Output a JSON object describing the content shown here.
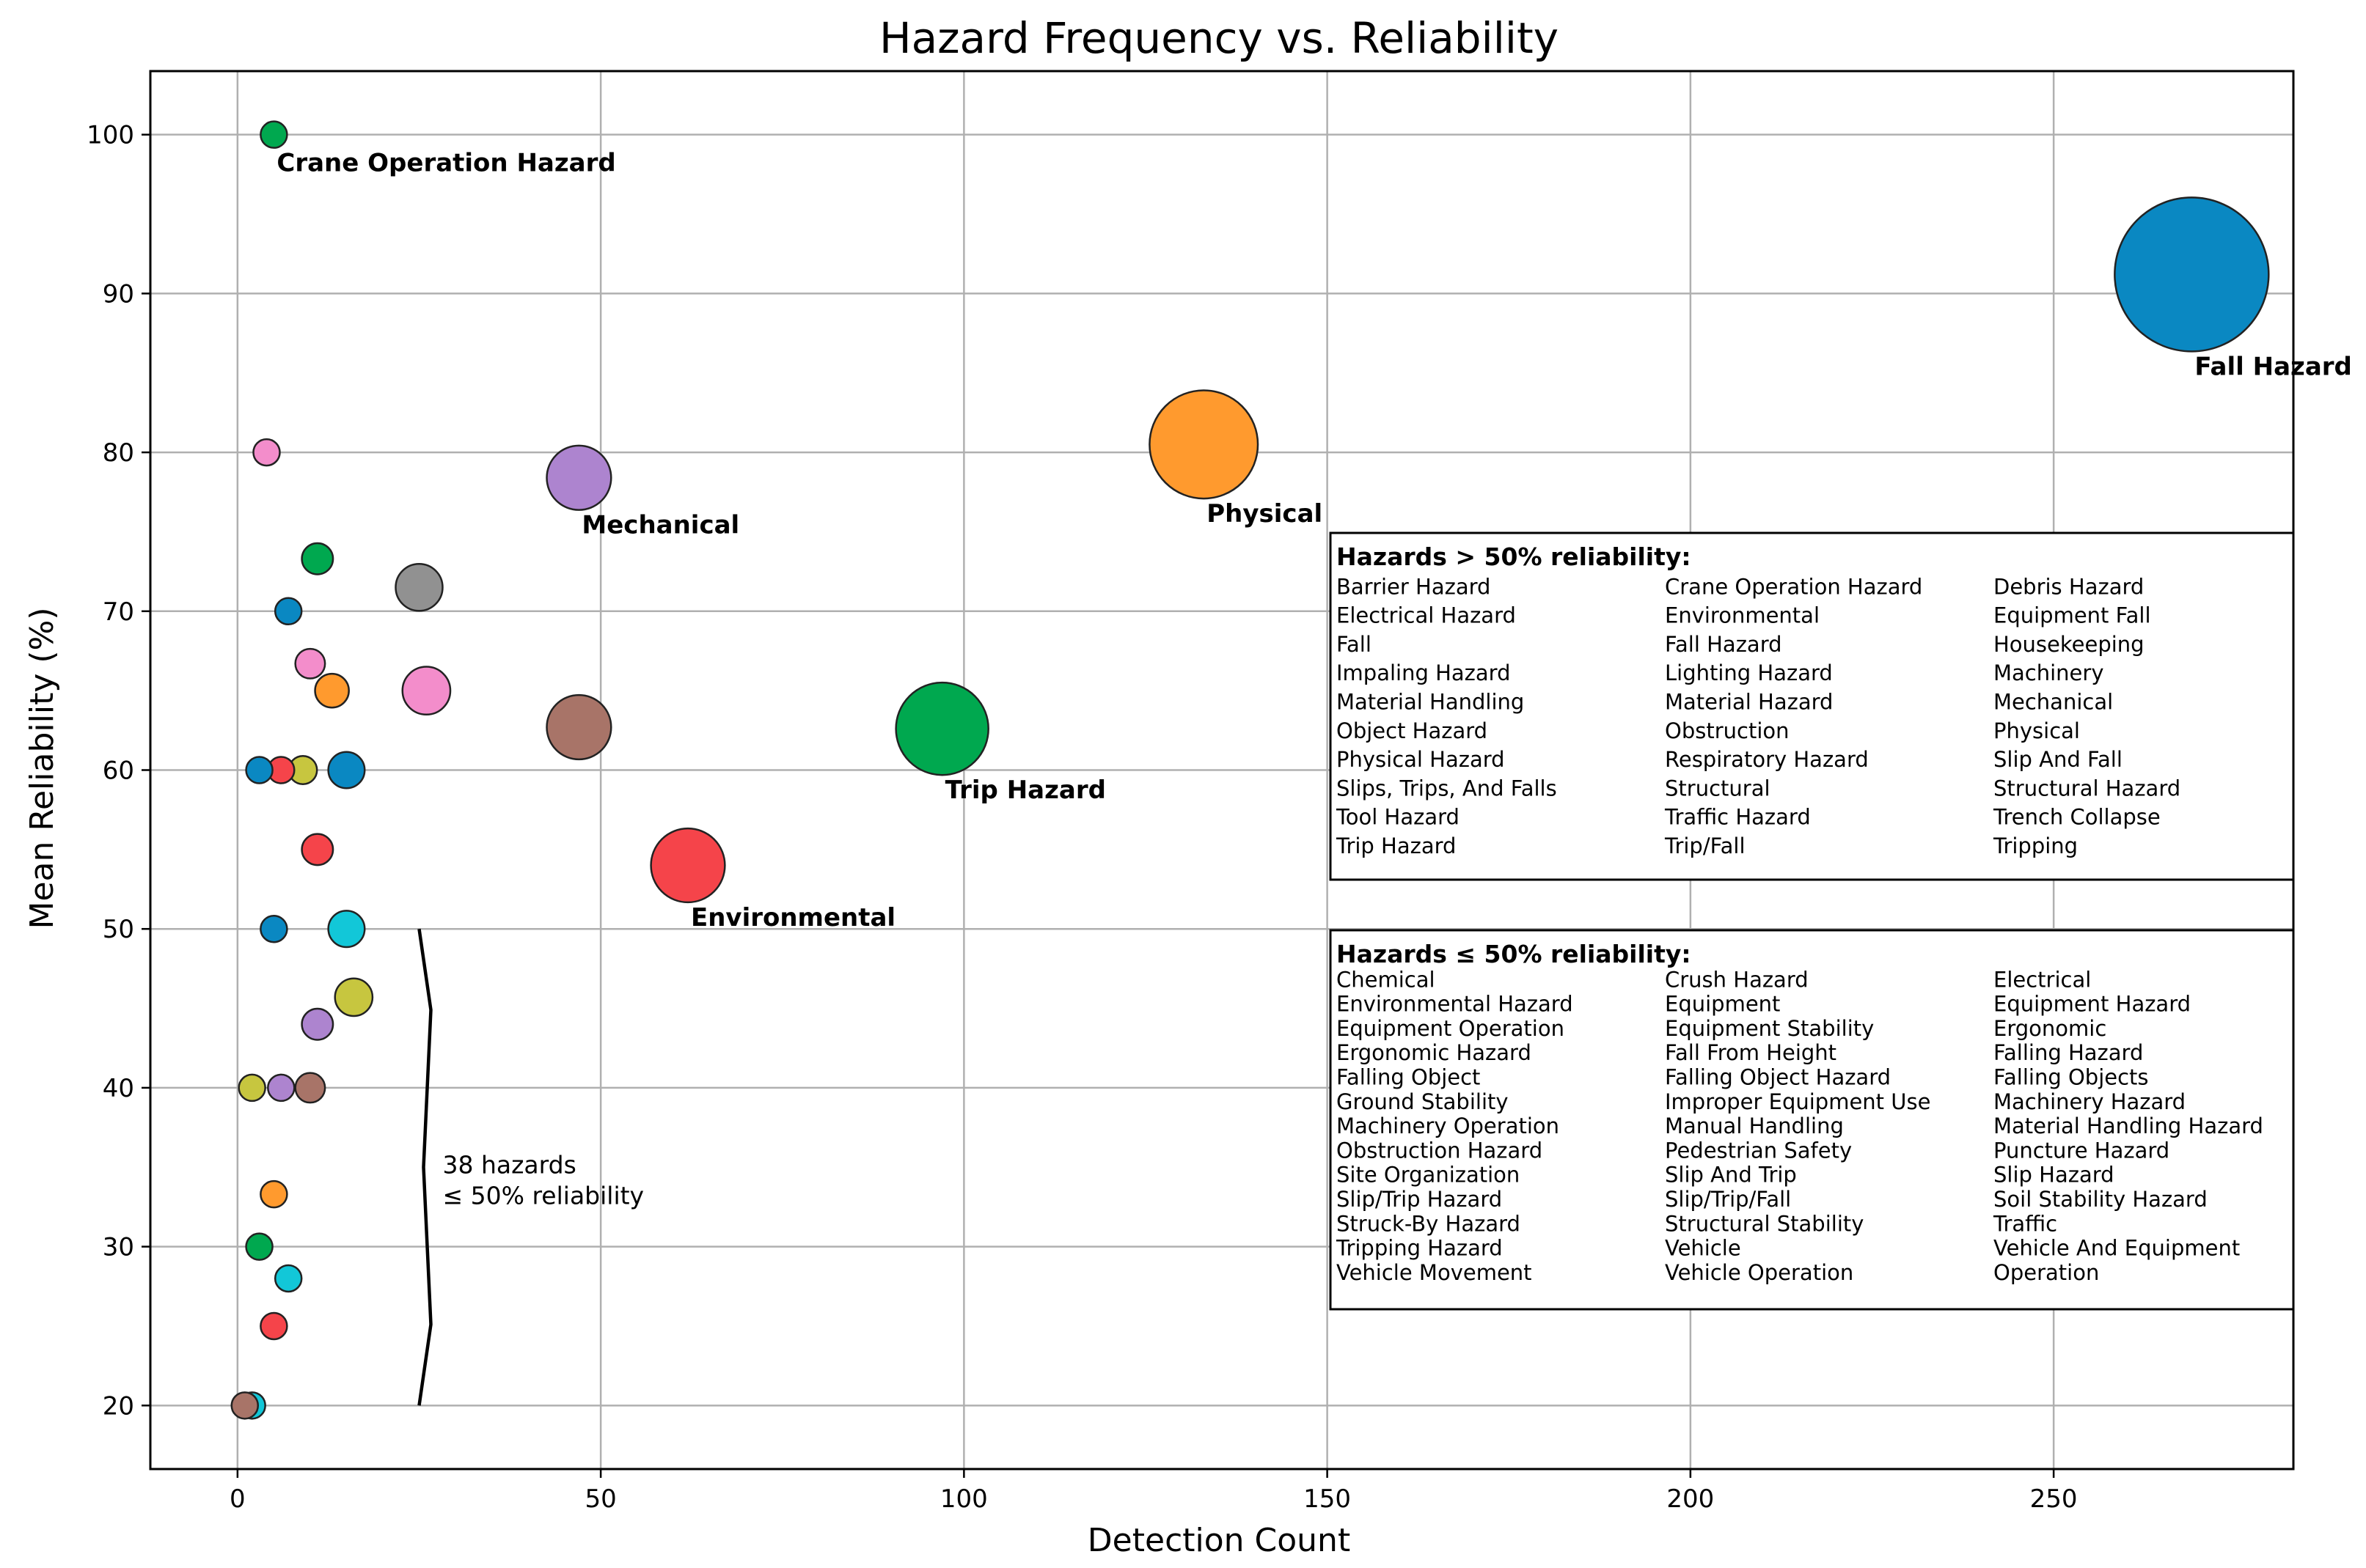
{
  "chart_data": {
    "type": "scatter",
    "title": "Hazard Frequency vs. Reliability",
    "xlabel": "Detection Count",
    "ylabel": "Mean Reliability (%)",
    "xlim": [
      -12,
      283
    ],
    "ylim": [
      16,
      104
    ],
    "xticks": [
      0,
      50,
      100,
      150,
      200,
      250
    ],
    "yticks": [
      20,
      30,
      40,
      50,
      60,
      70,
      80,
      90,
      100
    ],
    "grid": true,
    "points": [
      {
        "x": 269,
        "y": 91.2,
        "color": "#0a88c2"
      },
      {
        "x": 133,
        "y": 80.5,
        "color": "#ff9a2e"
      },
      {
        "x": 97,
        "y": 62.6,
        "color": "#00a84f"
      },
      {
        "x": 62,
        "y": 54.0,
        "color": "#f5444a"
      },
      {
        "x": 47,
        "y": 78.4,
        "color": "#ad84cf"
      },
      {
        "x": 47,
        "y": 62.7,
        "color": "#a87468"
      },
      {
        "x": 26,
        "y": 65.0,
        "color": "#f38dcb"
      },
      {
        "x": 25,
        "y": 71.5,
        "color": "#919191"
      },
      {
        "x": 16,
        "y": 45.7,
        "color": "#c7c63f"
      },
      {
        "x": 15,
        "y": 60.0,
        "color": "#0a88c2"
      },
      {
        "x": 15,
        "y": 50.0,
        "color": "#12c7d8"
      },
      {
        "x": 13,
        "y": 65.0,
        "color": "#ff9a2e"
      },
      {
        "x": 11,
        "y": 73.3,
        "color": "#00a84f"
      },
      {
        "x": 11,
        "y": 55.0,
        "color": "#f5444a"
      },
      {
        "x": 11,
        "y": 44.0,
        "color": "#ad84cf"
      },
      {
        "x": 10,
        "y": 40.0,
        "color": "#a87468"
      },
      {
        "x": 10,
        "y": 66.7,
        "color": "#f38dcb"
      },
      {
        "x": 9,
        "y": 60.0,
        "color": "#c7c63f"
      },
      {
        "x": 7,
        "y": 70.0,
        "color": "#0a88c2"
      },
      {
        "x": 7,
        "y": 28.0,
        "color": "#12c7d8"
      },
      {
        "x": 6,
        "y": 60.0,
        "color": "#f5444a"
      },
      {
        "x": 6,
        "y": 40.0,
        "color": "#ad84cf"
      },
      {
        "x": 5,
        "y": 100.0,
        "color": "#00a84f"
      },
      {
        "x": 5,
        "y": 50.0,
        "color": "#0a88c2"
      },
      {
        "x": 5,
        "y": 33.3,
        "color": "#ff9a2e"
      },
      {
        "x": 5,
        "y": 25.0,
        "color": "#f5444a"
      },
      {
        "x": 4,
        "y": 80.0,
        "color": "#f38dcb"
      },
      {
        "x": 3,
        "y": 60.0,
        "color": "#0a88c2"
      },
      {
        "x": 3,
        "y": 30.0,
        "color": "#00a84f"
      },
      {
        "x": 2,
        "y": 40.0,
        "color": "#c7c63f"
      },
      {
        "x": 2,
        "y": 20.0,
        "color": "#12c7d8"
      },
      {
        "x": 1,
        "y": 20.0,
        "color": "#a87468"
      }
    ],
    "annotations": [
      {
        "text": "Fall Hazard",
        "x": 269,
        "y": 91.2
      },
      {
        "text": "Physical",
        "x": 133,
        "y": 80.5
      },
      {
        "text": "Trip Hazard",
        "x": 97,
        "y": 62.6
      },
      {
        "text": "Environmental",
        "x": 62,
        "y": 54.0
      },
      {
        "text": "Mechanical",
        "x": 47,
        "y": 78.4
      },
      {
        "text": "Crane Operation Hazard",
        "x": 5,
        "y": 100.0
      }
    ],
    "brace": {
      "x": 25,
      "y_range": [
        20,
        50
      ],
      "text": [
        "38 hazards",
        "≤ 50% reliability"
      ]
    },
    "high_box": {
      "title": "Hazards > 50% reliability:",
      "columns": [
        [
          "Barrier Hazard",
          "Electrical Hazard",
          "Fall",
          "Impaling Hazard",
          "Material Handling",
          "Object Hazard",
          "Physical Hazard",
          "Slips, Trips, And Falls",
          "Tool Hazard",
          "Trip Hazard"
        ],
        [
          "Crane Operation Hazard",
          "Environmental",
          "Fall Hazard",
          "Lighting Hazard",
          "Material Hazard",
          "Obstruction",
          "Respiratory Hazard",
          "Structural",
          "Traffic Hazard",
          "Trip/Fall"
        ],
        [
          "Debris Hazard",
          "Equipment Fall",
          "Housekeeping",
          "Machinery",
          "Mechanical",
          "Physical",
          "Slip And Fall",
          "Structural Hazard",
          "Trench Collapse",
          "Tripping"
        ]
      ]
    },
    "low_box": {
      "title": "Hazards ≤ 50% reliability:",
      "columns": [
        [
          "Chemical",
          "Environmental Hazard",
          "Equipment Operation",
          "Ergonomic Hazard",
          "Falling Object",
          "Ground Stability",
          "Machinery Operation",
          "Obstruction Hazard",
          "Site Organization",
          "Slip/Trip Hazard",
          "Struck-By Hazard",
          "Tripping Hazard",
          "Vehicle Movement"
        ],
        [
          "Crush Hazard",
          "Equipment",
          "Equipment Stability",
          "Fall From Height",
          "Falling Object Hazard",
          "Improper Equipment Use",
          "Manual Handling",
          "Pedestrian Safety",
          "Slip And Trip",
          "Slip/Trip/Fall",
          "Structural Stability",
          "Vehicle",
          "Vehicle Operation"
        ],
        [
          "Electrical",
          "Equipment Hazard",
          "Ergonomic",
          "Falling Hazard",
          "Falling Objects",
          "Machinery Hazard",
          "Material Handling Hazard",
          "Puncture Hazard",
          "Slip Hazard",
          "Soil Stability Hazard",
          "Traffic",
          "Vehicle And Equipment",
          "Operation"
        ]
      ]
    }
  }
}
